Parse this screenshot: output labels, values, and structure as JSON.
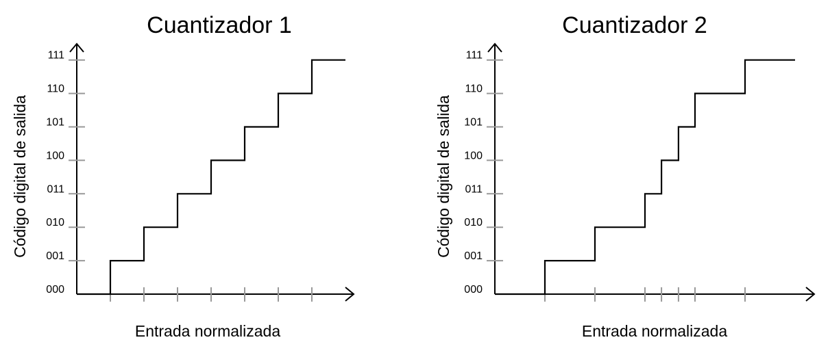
{
  "chart_data": [
    {
      "type": "line",
      "title": "Cuantizador 1",
      "xlabel": "Entrada normalizada",
      "ylabel": "Código digital de salida",
      "y_tick_labels": [
        "000",
        "001",
        "010",
        "011",
        "100",
        "101",
        "110",
        "111"
      ],
      "x_ticks": [
        1,
        2,
        3,
        4,
        5,
        6,
        7
      ],
      "series": [
        {
          "x": [
            0,
            1,
            1,
            2,
            2,
            3,
            3,
            4,
            4,
            5,
            5,
            6,
            6,
            7,
            7,
            8
          ],
          "y": [
            0,
            0,
            1,
            1,
            2,
            2,
            3,
            3,
            4,
            4,
            5,
            5,
            6,
            6,
            7,
            7
          ]
        }
      ],
      "xlim": [
        0,
        8.3
      ],
      "ylim": [
        0,
        7.7
      ],
      "grid": false
    },
    {
      "type": "line",
      "title": "Cuantizador 2",
      "xlabel": "Entrada normalizada",
      "ylabel": "Código digital de salida",
      "y_tick_labels": [
        "000",
        "001",
        "010",
        "011",
        "100",
        "101",
        "110",
        "111"
      ],
      "x_ticks": [
        1,
        2,
        3,
        3.33,
        3.67,
        4,
        5
      ],
      "series": [
        {
          "x": [
            0,
            1,
            1,
            2,
            2,
            3,
            3,
            3.33,
            3.33,
            3.67,
            3.67,
            4,
            4,
            5,
            5,
            6
          ],
          "y": [
            0,
            0,
            1,
            1,
            2,
            2,
            3,
            3,
            4,
            4,
            5,
            5,
            6,
            6,
            7,
            7
          ]
        }
      ],
      "xlim": [
        0,
        6.3
      ],
      "ylim": [
        0,
        7.7
      ],
      "grid": false
    }
  ]
}
